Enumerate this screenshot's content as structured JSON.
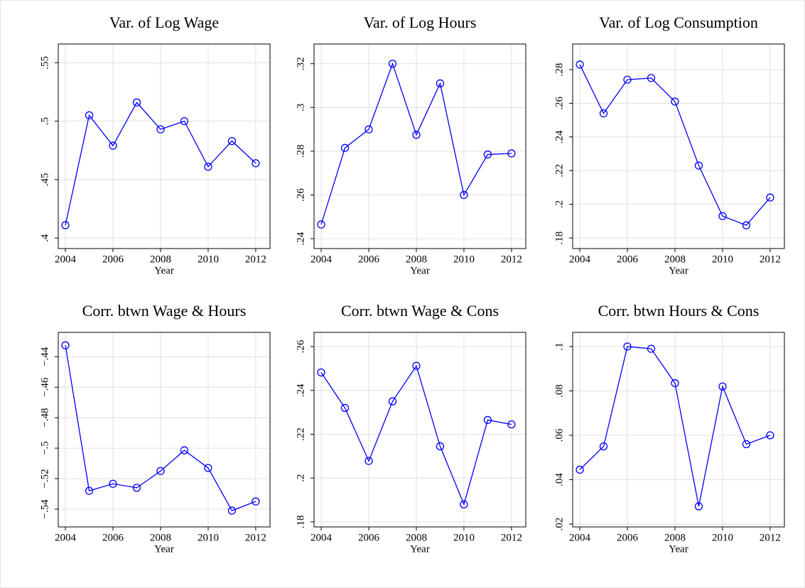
{
  "chart_data": [
    {
      "type": "line",
      "title": "Var. of Log Wage",
      "x_label": "Year",
      "color": "#0000ff",
      "grid": true,
      "x": [
        2004,
        2005,
        2006,
        2007,
        2008,
        2009,
        2010,
        2011,
        2012
      ],
      "values": [
        0.411,
        0.505,
        0.479,
        0.516,
        0.493,
        0.5,
        0.461,
        0.483,
        0.464
      ],
      "xlim": [
        2003.7,
        2012.6
      ],
      "xticks": [
        2004,
        2006,
        2008,
        2010,
        2012
      ],
      "ylim": [
        0.391,
        0.566
      ],
      "yticks": [
        {
          "value": 0.4,
          "label": ".4"
        },
        {
          "value": 0.45,
          "label": ".45"
        },
        {
          "value": 0.5,
          "label": ".5"
        },
        {
          "value": 0.55,
          "label": ".55"
        }
      ]
    },
    {
      "type": "line",
      "title": "Var. of Log Hours",
      "x_label": "Year",
      "color": "#0000ff",
      "grid": true,
      "x": [
        2004,
        2005,
        2006,
        2007,
        2008,
        2009,
        2010,
        2011,
        2012
      ],
      "values": [
        0.2465,
        0.2815,
        0.29,
        0.32,
        0.2875,
        0.311,
        0.26,
        0.2785,
        0.279
      ],
      "xlim": [
        2003.7,
        2012.6
      ],
      "xticks": [
        2004,
        2006,
        2008,
        2010,
        2012
      ],
      "ylim": [
        0.2355,
        0.329
      ],
      "yticks": [
        {
          "value": 0.24,
          "label": ".24"
        },
        {
          "value": 0.26,
          "label": ".26"
        },
        {
          "value": 0.28,
          "label": ".28"
        },
        {
          "value": 0.3,
          "label": ".3"
        },
        {
          "value": 0.32,
          "label": ".32"
        }
      ]
    },
    {
      "type": "line",
      "title": "Var. of Log Consumption",
      "x_label": "Year",
      "color": "#0000ff",
      "grid": true,
      "x": [
        2004,
        2005,
        2006,
        2007,
        2008,
        2009,
        2010,
        2011,
        2012
      ],
      "values": [
        0.283,
        0.254,
        0.274,
        0.275,
        0.261,
        0.223,
        0.193,
        0.1875,
        0.204
      ],
      "xlim": [
        2003.7,
        2012.6
      ],
      "xticks": [
        2004,
        2006,
        2008,
        2010,
        2012
      ],
      "ylim": [
        0.1737,
        0.2952
      ],
      "yticks": [
        {
          "value": 0.18,
          "label": ".18"
        },
        {
          "value": 0.2,
          "label": ".2"
        },
        {
          "value": 0.22,
          "label": ".22"
        },
        {
          "value": 0.24,
          "label": ".24"
        },
        {
          "value": 0.26,
          "label": ".26"
        },
        {
          "value": 0.28,
          "label": ".28"
        }
      ]
    },
    {
      "type": "line",
      "title": "Corr. btwn Wage & Hours",
      "x_label": "Year",
      "color": "#0000ff",
      "grid": true,
      "x": [
        2004,
        2005,
        2006,
        2007,
        2008,
        2009,
        2010,
        2011,
        2012
      ],
      "values": [
        -0.4325,
        -0.528,
        -0.5234,
        -0.526,
        -0.515,
        -0.5014,
        -0.513,
        -0.541,
        -0.535
      ],
      "xlim": [
        2003.7,
        2012.6
      ],
      "xticks": [
        2004,
        2006,
        2008,
        2010,
        2012
      ],
      "ylim": [
        -0.5517,
        -0.424
      ],
      "yticks": [
        {
          "value": -0.54,
          "label": "−.54"
        },
        {
          "value": -0.52,
          "label": "−.52"
        },
        {
          "value": -0.5,
          "label": "−.5"
        },
        {
          "value": -0.48,
          "label": "−.48"
        },
        {
          "value": -0.46,
          "label": "−.46"
        },
        {
          "value": -0.44,
          "label": "−.44"
        }
      ]
    },
    {
      "type": "line",
      "title": "Corr. btwn Wage & Cons",
      "x_label": "Year",
      "color": "#0000ff",
      "grid": true,
      "x": [
        2004,
        2005,
        2006,
        2007,
        2008,
        2009,
        2010,
        2011,
        2012
      ],
      "values": [
        0.2482,
        0.232,
        0.2078,
        0.235,
        0.2512,
        0.2145,
        0.188,
        0.2265,
        0.2245
      ],
      "xlim": [
        2003.7,
        2012.6
      ],
      "xticks": [
        2004,
        2006,
        2008,
        2010,
        2012
      ],
      "ylim": [
        0.1777,
        0.2665
      ],
      "yticks": [
        {
          "value": 0.18,
          "label": ".18"
        },
        {
          "value": 0.2,
          "label": ".2"
        },
        {
          "value": 0.22,
          "label": ".22"
        },
        {
          "value": 0.24,
          "label": ".24"
        },
        {
          "value": 0.26,
          "label": ".26"
        }
      ]
    },
    {
      "type": "line",
      "title": "Corr. btwn Hours & Cons",
      "x_label": "Year",
      "color": "#0000ff",
      "grid": true,
      "x": [
        2004,
        2005,
        2006,
        2007,
        2008,
        2009,
        2010,
        2011,
        2012
      ],
      "values": [
        0.0445,
        0.055,
        0.1,
        0.099,
        0.0835,
        0.028,
        0.082,
        0.056,
        0.06
      ],
      "xlim": [
        2003.7,
        2012.6
      ],
      "xticks": [
        2004,
        2006,
        2008,
        2010,
        2012
      ],
      "ylim": [
        0.0187,
        0.1064
      ],
      "yticks": [
        {
          "value": 0.02,
          "label": ".02"
        },
        {
          "value": 0.04,
          "label": ".04"
        },
        {
          "value": 0.06,
          "label": ".06"
        },
        {
          "value": 0.08,
          "label": ".08"
        },
        {
          "value": 0.1,
          "label": ".1"
        }
      ]
    }
  ]
}
